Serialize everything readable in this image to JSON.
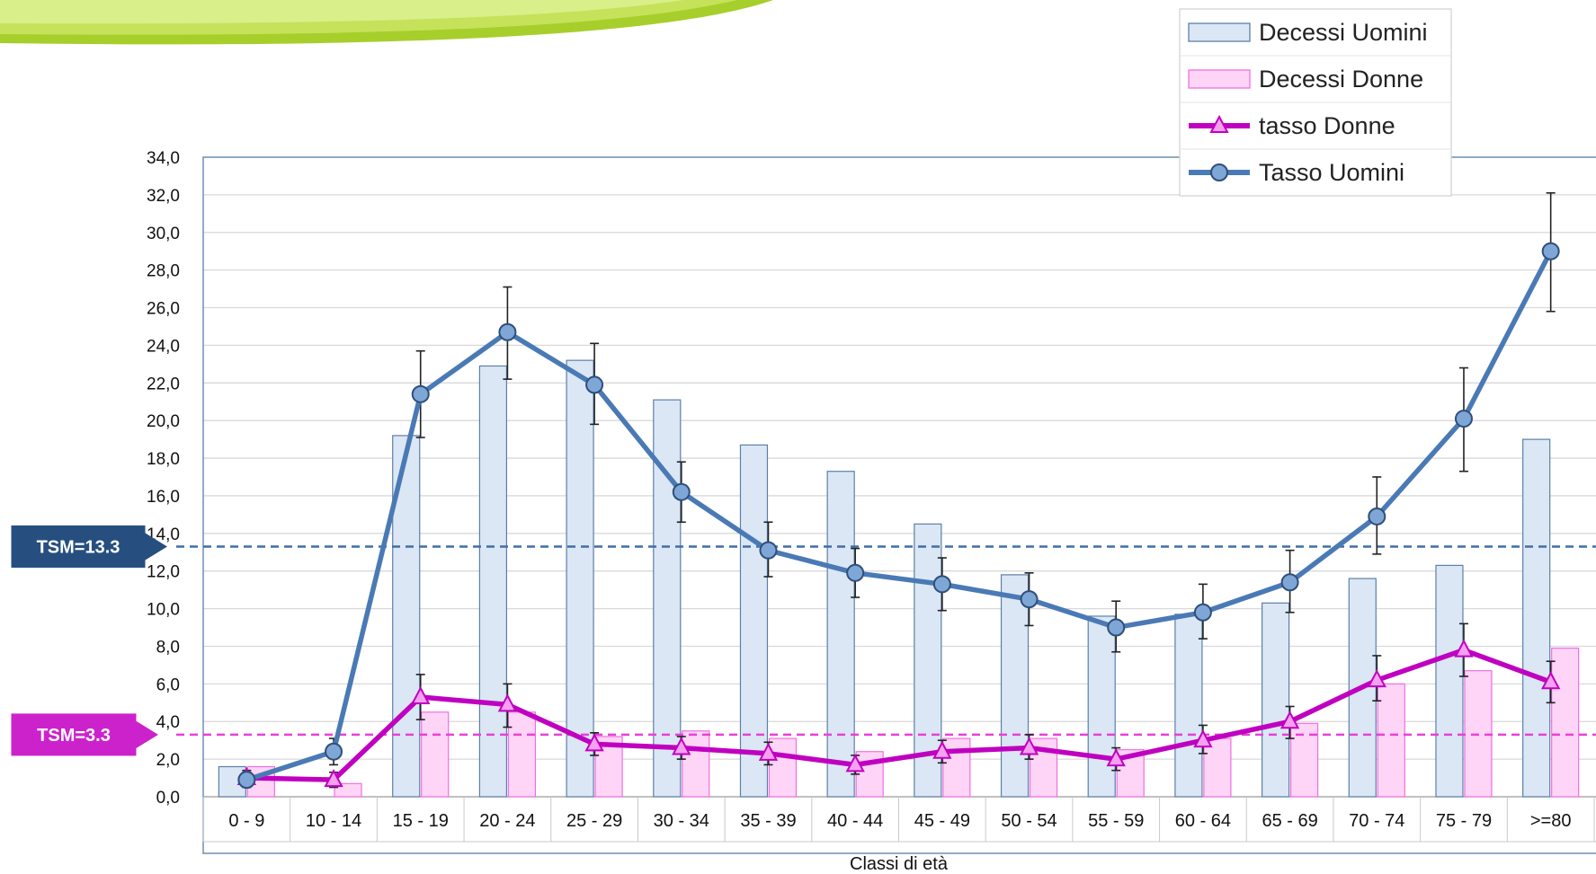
{
  "chart_data": {
    "type": "bar",
    "categories": [
      "0 - 9",
      "10 - 14",
      "15 - 19",
      "20 - 24",
      "25 - 29",
      "30 - 34",
      "35 - 39",
      "40 - 44",
      "45 - 49",
      "50 - 54",
      "55 - 59",
      "60 - 64",
      "65 - 69",
      "70 - 74",
      "75 - 79",
      ">=80"
    ],
    "xlabel": "Classi di età",
    "ylim": [
      0,
      34
    ],
    "yticks": [
      "0,0",
      "2,0",
      "4,0",
      "6,0",
      "8,0",
      "10,0",
      "12,0",
      "14,0",
      "16,0",
      "18,0",
      "20,0",
      "22,0",
      "24,0",
      "26,0",
      "28,0",
      "30,0",
      "32,0",
      "34,0"
    ],
    "series": [
      {
        "name": "Decessi Uomini",
        "kind": "bar",
        "color": "#dbe7f5",
        "stroke": "#5d7fa8",
        "values": [
          1.6,
          0,
          19.2,
          22.9,
          23.2,
          21.1,
          18.7,
          17.3,
          14.5,
          11.8,
          9.6,
          9.7,
          10.3,
          11.6,
          12.3,
          19.0
        ]
      },
      {
        "name": "Decessi Donne",
        "kind": "bar",
        "color": "#ffd5f7",
        "stroke": "#f070e0",
        "values": [
          1.6,
          0.7,
          4.5,
          4.5,
          3.2,
          3.5,
          3.1,
          2.4,
          3.1,
          3.1,
          2.5,
          3.1,
          3.9,
          6.0,
          6.7,
          7.9
        ]
      },
      {
        "name": "tasso Donne",
        "kind": "line",
        "color": "#c000c0",
        "marker": "triangle",
        "marker_fill": "#f5a0f0",
        "values": [
          1.0,
          0.9,
          5.3,
          4.9,
          2.8,
          2.6,
          2.3,
          1.7,
          2.4,
          2.6,
          2.0,
          3.0,
          4.0,
          6.2,
          7.8,
          6.1
        ],
        "err_low": [
          0.4,
          0.4,
          1.2,
          1.2,
          0.6,
          0.6,
          0.6,
          0.5,
          0.6,
          0.6,
          0.6,
          0.7,
          0.9,
          1.1,
          1.4,
          1.1
        ],
        "err_high": [
          0.4,
          0.4,
          1.2,
          1.1,
          0.6,
          0.6,
          0.6,
          0.5,
          0.6,
          0.7,
          0.6,
          0.8,
          0.8,
          1.3,
          1.4,
          1.1
        ]
      },
      {
        "name": "Tasso Uomini",
        "kind": "line",
        "color": "#4a7ab5",
        "marker": "circle",
        "marker_fill": "#7ea6d6",
        "values": [
          0.9,
          2.4,
          21.4,
          24.7,
          21.9,
          16.2,
          13.1,
          11.9,
          11.3,
          10.5,
          9.0,
          9.8,
          11.4,
          14.9,
          20.1,
          29.0
        ],
        "err_low": [
          0.4,
          0.7,
          2.3,
          2.5,
          2.1,
          1.6,
          1.4,
          1.3,
          1.4,
          1.4,
          1.3,
          1.4,
          1.6,
          2.0,
          2.8,
          3.2
        ],
        "err_high": [
          0.4,
          0.7,
          2.3,
          2.4,
          2.2,
          1.6,
          1.5,
          1.3,
          1.4,
          1.4,
          1.4,
          1.5,
          1.7,
          2.1,
          2.7,
          3.1
        ]
      }
    ],
    "reference_lines": [
      {
        "label": "TSM=13.3",
        "value": 13.3,
        "color": "#3f6ea8",
        "box_color": "#264f80"
      },
      {
        "label": "TSM=3.3",
        "value": 3.3,
        "color": "#e840d8",
        "box_color": "#cc22cc"
      }
    ],
    "legend_position": "top-right",
    "grid": true
  }
}
